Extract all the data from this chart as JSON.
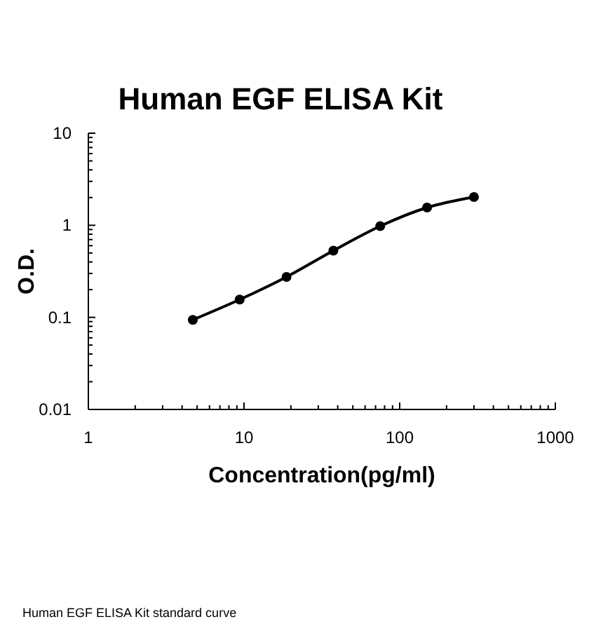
{
  "chart_data": {
    "type": "scatter",
    "title": "Human EGF ELISA Kit",
    "xlabel": "Concentration(pg/ml)",
    "ylabel": "O.D.",
    "log": "xy",
    "marker": "circle",
    "grid": false,
    "xlim": [
      1,
      1000
    ],
    "ylim": [
      0.01,
      10
    ],
    "xticks": [
      1,
      {
        "value": 2,
        "label": null
      },
      {
        "value": 3,
        "label": null
      },
      {
        "value": 4,
        "label": null
      },
      {
        "value": 5,
        "label": null
      },
      {
        "value": 6,
        "label": null
      },
      {
        "value": 7,
        "label": null
      },
      {
        "value": 8,
        "label": null
      },
      {
        "value": 9,
        "label": null
      },
      10,
      {
        "value": 20,
        "label": null
      },
      {
        "value": 30,
        "label": null
      },
      {
        "value": 40,
        "label": null
      },
      {
        "value": 50,
        "label": null
      },
      {
        "value": 60,
        "label": null
      },
      {
        "value": 70,
        "label": null
      },
      {
        "value": 80,
        "label": null
      },
      {
        "value": 90,
        "label": null
      },
      100,
      {
        "value": 200,
        "label": null
      },
      {
        "value": 300,
        "label": null
      },
      {
        "value": 400,
        "label": null
      },
      {
        "value": 500,
        "label": null
      },
      {
        "value": 600,
        "label": null
      },
      {
        "value": 700,
        "label": null
      },
      {
        "value": 800,
        "label": null
      },
      {
        "value": 900,
        "label": null
      },
      1000
    ],
    "yticks": [
      {
        "value": 0.01,
        "label": "0.01"
      },
      {
        "value": 0.02,
        "label": null
      },
      {
        "value": 0.03,
        "label": null
      },
      {
        "value": 0.04,
        "label": null
      },
      {
        "value": 0.05,
        "label": null
      },
      {
        "value": 0.06,
        "label": null
      },
      {
        "value": 0.07,
        "label": null
      },
      {
        "value": 0.08,
        "label": null
      },
      {
        "value": 0.09,
        "label": null
      },
      {
        "value": 0.1,
        "label": "0.1"
      },
      {
        "value": 0.2,
        "label": null
      },
      {
        "value": 0.3,
        "label": null
      },
      {
        "value": 0.4,
        "label": null
      },
      {
        "value": 0.5,
        "label": null
      },
      {
        "value": 0.6,
        "label": null
      },
      {
        "value": 0.7,
        "label": null
      },
      {
        "value": 0.8,
        "label": null
      },
      {
        "value": 0.9,
        "label": null
      },
      1,
      {
        "value": 2,
        "label": null
      },
      {
        "value": 3,
        "label": null
      },
      {
        "value": 4,
        "label": null
      },
      {
        "value": 5,
        "label": null
      },
      {
        "value": 6,
        "label": null
      },
      {
        "value": 7,
        "label": null
      },
      {
        "value": 8,
        "label": null
      },
      {
        "value": 9,
        "label": null
      },
      10
    ],
    "series": [
      {
        "type": "line",
        "marker": "none",
        "color": "#000000",
        "x": [
          4.69,
          9.38,
          18.75,
          37.5,
          75,
          150,
          300
        ],
        "values": [
          0.094,
          0.156,
          0.275,
          0.53,
          0.98,
          1.56,
          2.03
        ]
      },
      {
        "color": "#000000",
        "x": [
          4.69,
          9.38,
          18.75,
          37.5,
          75,
          150,
          300
        ],
        "values": [
          0.094,
          0.156,
          0.275,
          0.53,
          0.98,
          1.56,
          2.03
        ]
      }
    ],
    "annotations": [
      "Human EGF ELISA Kit standard curve"
    ]
  }
}
